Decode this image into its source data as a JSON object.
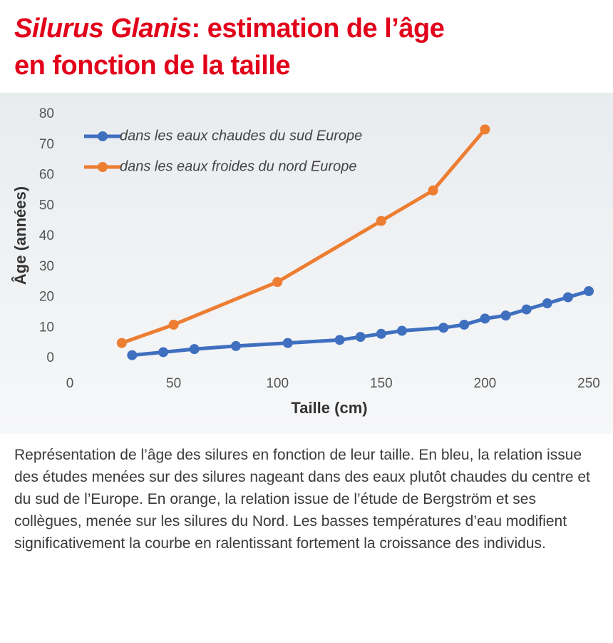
{
  "chart_data": {
    "type": "line",
    "title_italic": "Silurus Glanis",
    "title": [
      ": estimation de l’âge",
      "en fonction de la taille"
    ],
    "x_label": "Taille (cm)",
    "y_label": "Âge (années)",
    "xlim": [
      0,
      250
    ],
    "xticks": [
      0,
      50,
      100,
      150,
      200,
      250
    ],
    "ylim": [
      0,
      80
    ],
    "yticks": [
      0,
      10,
      20,
      30,
      40,
      50,
      60,
      70,
      80
    ],
    "grid": false,
    "legend": "top-left",
    "series": [
      {
        "name": "dans les eaux chaudes du sud Europe",
        "color": "#3f6fbf",
        "x": [
          30,
          45,
          60,
          80,
          105,
          130,
          140,
          150,
          160,
          180,
          190,
          200,
          210,
          220,
          230,
          240,
          250
        ],
        "values": [
          1,
          2,
          3,
          4,
          5,
          6,
          7,
          8,
          9,
          10,
          11,
          13,
          14,
          16,
          18,
          20,
          22
        ]
      },
      {
        "name": "dans les eaux froides du nord Europe",
        "color": "#ed7d31",
        "x": [
          25,
          50,
          100,
          150,
          175,
          200
        ],
        "values": [
          5,
          11,
          25,
          45,
          55,
          75
        ]
      }
    ],
    "caption": "Représentation de l’âge des silures en fonction de leur taille. En bleu, la relation issue des études menées sur des silures nageant dans des eaux plutôt chaudes du centre et du sud de l’Europe. En orange, la relation issue de l’étude de Bergström et ses collègues, menée sur les silures du Nord. Les basses températures d’eau modifient significativement la courbe en ralentissant fortement la croissance des individus."
  }
}
